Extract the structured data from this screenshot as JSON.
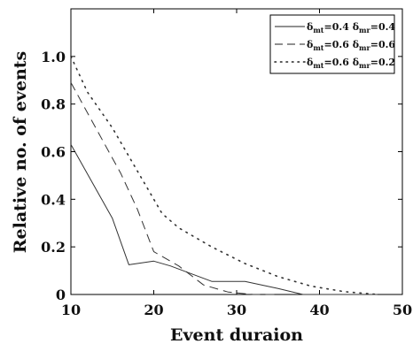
{
  "chart_data": {
    "type": "line",
    "title": "",
    "xlabel": "Event duraion",
    "ylabel": "Relative no. of events",
    "xlim": [
      10,
      50
    ],
    "ylim": [
      0,
      1.2
    ],
    "xticks": [
      10,
      20,
      30,
      40,
      50
    ],
    "xtick_labels": [
      "10",
      "20",
      "30",
      "40",
      "50"
    ],
    "yticks": [
      0,
      0.2,
      0.4,
      0.6,
      0.8,
      1.0
    ],
    "ytick_labels": [
      "0",
      "0.2",
      "0.4",
      "0.6",
      "0.8",
      "1.0"
    ],
    "grid": false,
    "legend_position": "top-right",
    "series": [
      {
        "name": "δmt=0.4 δmr=0.4",
        "legend": {
          "d1": "δ",
          "s1": "mt",
          "v1": "=0.4 ",
          "d2": "δ",
          "s2": "mr",
          "v2": "=0.4"
        },
        "style": "solid",
        "x": [
          10,
          15,
          17,
          20,
          22,
          27,
          31,
          35,
          38,
          40,
          45,
          47
        ],
        "y": [
          0.63,
          0.32,
          0.125,
          0.14,
          0.12,
          0.055,
          0.055,
          0.025,
          0.0,
          0.0,
          0.0,
          0.0
        ]
      },
      {
        "name": "δmt=0.6 δmr=0.6",
        "legend": {
          "d1": "δ",
          "s1": "mt",
          "v1": "=0.6 ",
          "d2": "δ",
          "s2": "mr",
          "v2": "=0.6"
        },
        "style": "dashed",
        "x": [
          10,
          13,
          16,
          18,
          20,
          23,
          26,
          29,
          32,
          35
        ],
        "y": [
          0.89,
          0.7,
          0.51,
          0.36,
          0.18,
          0.12,
          0.04,
          0.01,
          0.0,
          0.0
        ]
      },
      {
        "name": "δmt=0.6 δmr=0.2",
        "legend": {
          "d1": "δ",
          "s1": "mt",
          "v1": "=0.6 ",
          "d2": "δ",
          "s2": "mr",
          "v2": "=0.2"
        },
        "style": "dotted",
        "x": [
          10,
          12,
          15,
          18,
          21,
          23,
          27,
          31,
          35,
          39,
          43,
          47
        ],
        "y": [
          1.0,
          0.85,
          0.7,
          0.52,
          0.34,
          0.28,
          0.2,
          0.13,
          0.075,
          0.035,
          0.012,
          0.0
        ]
      }
    ]
  }
}
